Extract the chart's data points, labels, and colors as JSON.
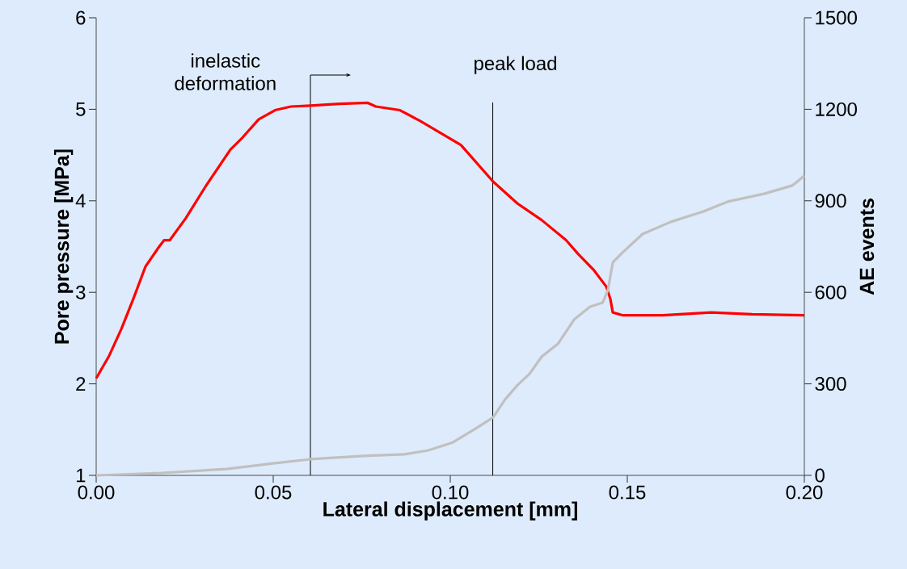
{
  "chart_data": {
    "type": "line",
    "xlabel": "Lateral displacement [mm]",
    "ylabel": "Pore pressure [MPa]",
    "y2label": "AE events",
    "xlim": [
      0,
      0.2
    ],
    "ylim": [
      1,
      6
    ],
    "y2lim": [
      0,
      1500
    ],
    "xticks": [
      {
        "value": 0,
        "label": "0.00"
      },
      {
        "value": 0.05,
        "label": "0.05"
      },
      {
        "value": 0.1,
        "label": "0.10"
      },
      {
        "value": 0.15,
        "label": "0.15"
      },
      {
        "value": 0.2,
        "label": "0.20"
      }
    ],
    "yticks": [
      1,
      2,
      3,
      4,
      5,
      6
    ],
    "y2ticks": [
      0,
      300,
      600,
      900,
      1200,
      1500
    ],
    "series": [
      {
        "color": "#ff0000",
        "x": [
          0,
          0.0037,
          0.0071,
          0.0105,
          0.0139,
          0.0178,
          0.0192,
          0.0208,
          0.0253,
          0.0311,
          0.0379,
          0.0413,
          0.0459,
          0.0505,
          0.055,
          0.0605,
          0.0687,
          0.0767,
          0.079,
          0.0858,
          0.0916,
          0.0973,
          0.103,
          0.1121,
          0.119,
          0.1258,
          0.1327,
          0.1361,
          0.1406,
          0.1441,
          0.1452,
          0.1459,
          0.1486,
          0.16,
          0.1737,
          0.1852,
          0.2
        ],
        "values": [
          2.06,
          2.31,
          2.6,
          2.93,
          3.28,
          3.5,
          3.57,
          3.57,
          3.81,
          4.17,
          4.56,
          4.69,
          4.89,
          4.99,
          5.03,
          5.04,
          5.06,
          5.07,
          5.03,
          4.99,
          4.87,
          4.74,
          4.61,
          4.21,
          3.97,
          3.79,
          3.57,
          3.42,
          3.24,
          3.06,
          2.93,
          2.78,
          2.75,
          2.75,
          2.78,
          2.76,
          2.75
        ]
      },
      {
        "color": "#c0c0c0",
        "axis": "y2",
        "x": [
          0,
          0.0185,
          0.0368,
          0.0505,
          0.0605,
          0.0756,
          0.087,
          0.0938,
          0.1007,
          0.1075,
          0.1121,
          0.1155,
          0.119,
          0.1224,
          0.1258,
          0.1304,
          0.135,
          0.1395,
          0.143,
          0.1445,
          0.1459,
          0.1486,
          0.1543,
          0.1623,
          0.1715,
          0.1783,
          0.1886,
          0.1966,
          0.2
        ],
        "values": [
          0,
          8,
          21,
          40,
          53,
          64,
          69,
          82,
          108,
          156,
          190,
          249,
          296,
          333,
          389,
          431,
          511,
          553,
          566,
          606,
          698,
          730,
          791,
          831,
          865,
          897,
          923,
          950,
          982
        ]
      }
    ],
    "ref_lines": [
      {
        "axis": "x",
        "value": 0.0605,
        "label": "inelastic\ndeformation",
        "color": "#000000"
      },
      {
        "axis": "x",
        "value": 0.112,
        "label": "peak load",
        "color": "#000000"
      }
    ]
  }
}
